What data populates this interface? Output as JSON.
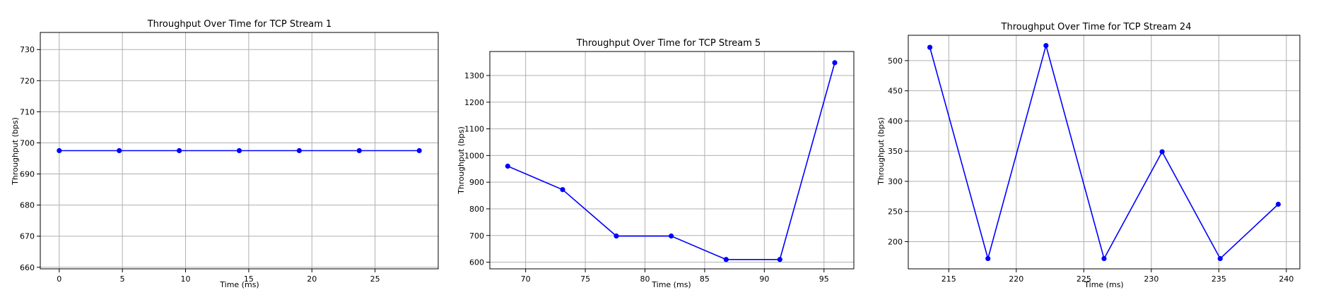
{
  "chart_data": [
    {
      "type": "line",
      "title": "Throughput Over Time for TCP Stream 1",
      "xlabel": "Time (ms)",
      "ylabel": "Throughput (bps)",
      "grid": true,
      "color": "#0000ff",
      "xlim": [
        -1.5,
        30
      ],
      "ylim": [
        659.5,
        735.5
      ],
      "xticks": [
        0,
        5,
        10,
        15,
        20,
        25
      ],
      "yticks": [
        660,
        670,
        680,
        690,
        700,
        710,
        720,
        730
      ],
      "x": [
        0,
        4.75,
        9.5,
        14.25,
        19.0,
        23.75,
        28.5
      ],
      "y": [
        697.5,
        697.5,
        697.5,
        697.5,
        697.5,
        697.5,
        697.5
      ]
    },
    {
      "type": "line",
      "title": "Throughput Over Time for TCP Stream 5",
      "xlabel": "Time (ms)",
      "ylabel": "Throughput (bps)",
      "grid": true,
      "color": "#0000ff",
      "xlim": [
        67,
        97.5
      ],
      "ylim": [
        575,
        1390
      ],
      "xticks": [
        70,
        75,
        80,
        85,
        90,
        95
      ],
      "yticks": [
        600,
        700,
        800,
        900,
        1000,
        1100,
        1200,
        1300
      ],
      "x": [
        68.5,
        73.1,
        77.6,
        82.2,
        86.8,
        91.3,
        95.9
      ],
      "y": [
        960,
        872,
        698,
        698,
        610,
        610,
        1348
      ]
    },
    {
      "type": "line",
      "title": "Throughput Over Time for TCP Stream 24",
      "xlabel": "Time (ms)",
      "ylabel": "Throughput (bps)",
      "grid": true,
      "color": "#0000ff",
      "xlim": [
        212,
        241
      ],
      "ylim": [
        155,
        542
      ],
      "xticks": [
        215,
        220,
        225,
        230,
        235,
        240
      ],
      "yticks": [
        200,
        250,
        300,
        350,
        400,
        450,
        500
      ],
      "x": [
        213.6,
        217.9,
        222.2,
        226.5,
        230.8,
        235.1,
        239.4
      ],
      "y": [
        522,
        172,
        525,
        172,
        349,
        172,
        262
      ]
    }
  ]
}
